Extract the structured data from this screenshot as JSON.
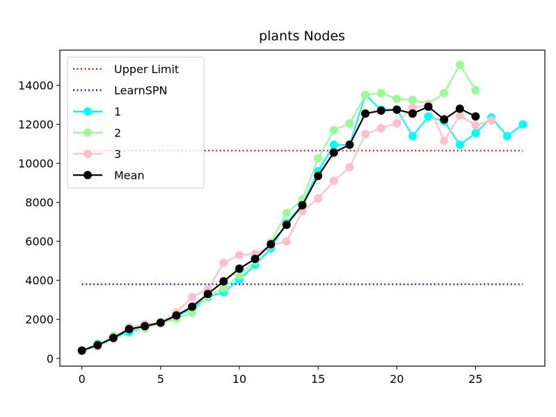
{
  "chart_data": {
    "type": "line",
    "title": "plants Nodes",
    "xlabel": "",
    "ylabel": "",
    "xlim": [
      -1.4,
      29.4
    ],
    "ylim": [
      -400,
      15800
    ],
    "xticks": [
      0,
      5,
      10,
      15,
      20,
      25
    ],
    "yticks": [
      0,
      2000,
      4000,
      6000,
      8000,
      10000,
      12000,
      14000
    ],
    "grid": false,
    "legend_position": "top-left",
    "reference_lines": [
      {
        "name": "Upper Limit",
        "y": 10650,
        "x_range": [
          0,
          28
        ],
        "color": "#ff0000",
        "style": "dotted"
      },
      {
        "name": "LearnSPN",
        "y": 3800,
        "x_range": [
          0,
          28
        ],
        "color": "#0000ff",
        "style": "dotted"
      }
    ],
    "series": [
      {
        "name": "1",
        "color": "#00ffff",
        "x": [
          0,
          1,
          2,
          3,
          4,
          5,
          6,
          7,
          8,
          9,
          10,
          11,
          12,
          13,
          14,
          15,
          16,
          17,
          18,
          19,
          20,
          21,
          22,
          23,
          24,
          25,
          26,
          27,
          28
        ],
        "values": [
          400,
          750,
          1050,
          1350,
          1600,
          1850,
          2150,
          2550,
          3150,
          3400,
          4050,
          4800,
          5650,
          6950,
          7900,
          9600,
          10950,
          10950,
          13500,
          12750,
          12750,
          11400,
          12400,
          12150,
          10950,
          11550,
          12350,
          11400,
          12000
        ]
      },
      {
        "name": "2",
        "color": "#98fb98",
        "x": [
          0,
          1,
          2,
          3,
          4,
          5,
          6,
          7,
          8,
          9,
          10,
          11,
          12,
          13,
          14,
          15,
          16,
          17,
          18,
          19,
          20,
          21,
          22,
          23,
          24,
          25
        ],
        "values": [
          400,
          700,
          1150,
          1500,
          1550,
          1800,
          2050,
          2350,
          3200,
          3600,
          4250,
          5000,
          5950,
          7450,
          8150,
          10250,
          11700,
          12050,
          13500,
          13600,
          13300,
          13250,
          13050,
          13600,
          15050,
          13750
        ]
      },
      {
        "name": "3",
        "color": "#ffc0cb",
        "x": [
          0,
          1,
          2,
          3,
          4,
          5,
          6,
          7,
          8,
          9,
          10,
          11,
          12,
          13,
          14,
          15,
          16,
          17,
          18,
          19,
          20,
          21,
          22,
          23,
          24,
          25,
          26
        ],
        "values": [
          400,
          600,
          1000,
          1600,
          1750,
          1850,
          2350,
          3150,
          3550,
          4900,
          5300,
          5350,
          5800,
          6000,
          7550,
          8200,
          9100,
          9800,
          11500,
          11800,
          12050,
          12850,
          13000,
          11150,
          12450,
          11950,
          12200
        ]
      },
      {
        "name": "Mean",
        "color": "#000000",
        "x": [
          0,
          1,
          2,
          3,
          4,
          5,
          6,
          7,
          8,
          9,
          10,
          11,
          12,
          13,
          14,
          15,
          16,
          17,
          18,
          19,
          20,
          21,
          22,
          23,
          24,
          25
        ],
        "values": [
          400,
          680,
          1050,
          1500,
          1650,
          1830,
          2200,
          2650,
          3300,
          3950,
          4600,
          5100,
          5850,
          6850,
          7850,
          9350,
          10550,
          10950,
          12550,
          12700,
          12750,
          12550,
          12900,
          12250,
          12800,
          12400
        ]
      }
    ]
  }
}
